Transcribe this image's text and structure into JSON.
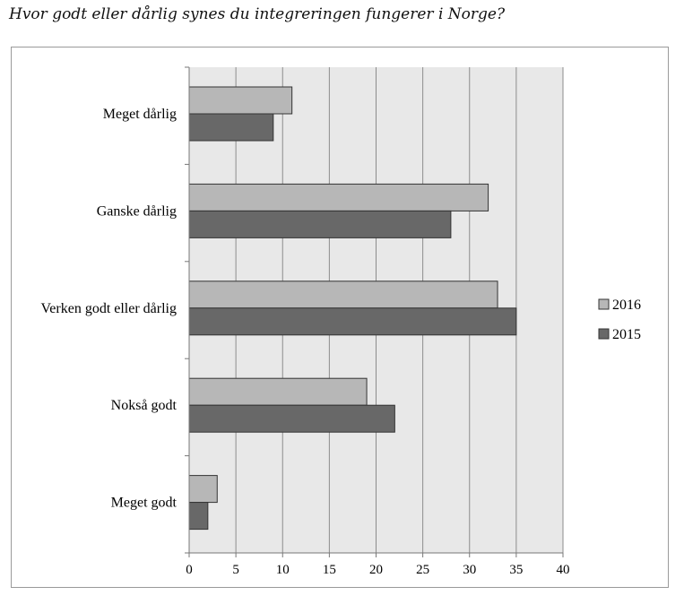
{
  "page": {
    "title": "Hvor godt eller dårlig synes du integreringen fungerer i Norge?"
  },
  "chart_data": {
    "type": "bar",
    "orientation": "horizontal",
    "title": "",
    "categories": [
      "Meget dårlig",
      "Ganske dårlig",
      "Verken godt eller dårlig",
      "Nokså godt",
      "Meget godt"
    ],
    "series": [
      {
        "name": "2016",
        "color": "#b7b7b7",
        "values": [
          11,
          32,
          33,
          19,
          3
        ]
      },
      {
        "name": "2015",
        "color": "#686868",
        "values": [
          9,
          28,
          35,
          22,
          2
        ]
      }
    ],
    "xlim": [
      0,
      40
    ],
    "xticks": [
      "0",
      "5",
      "10",
      "15",
      "20",
      "25",
      "30",
      "35",
      "40"
    ],
    "grid": true,
    "legend_position": "right",
    "plot_background": "#e8e8e8"
  }
}
